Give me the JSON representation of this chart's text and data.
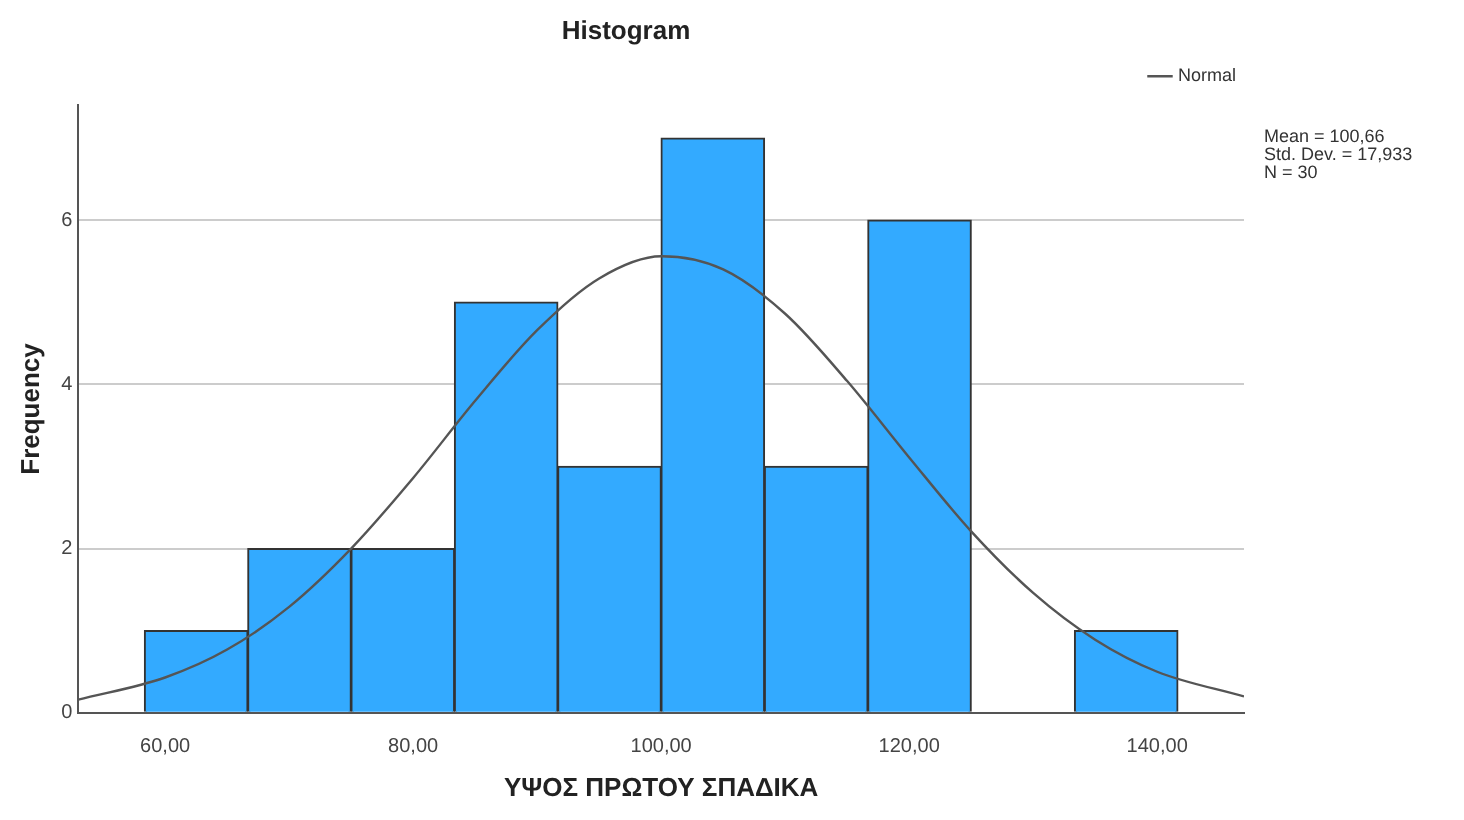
{
  "chart_data": {
    "type": "histogram",
    "title": "Histogram",
    "xlabel": "ΥΨΟΣ ΠΡΩΤΟΥ ΣΠΑΔΙΚΑ",
    "ylabel": "Frequency",
    "bins": [
      58.33,
      66.67,
      75,
      83.33,
      91.67,
      100,
      108.33,
      116.67,
      125,
      133.33,
      141.67
    ],
    "values": [
      1,
      2,
      2,
      5,
      3,
      7,
      3,
      6,
      0,
      1
    ],
    "color": "#33aaff",
    "series": [
      {
        "type": "line",
        "name": "Normal",
        "color": "#555555",
        "x": [
          53,
          60,
          65,
          70,
          75,
          80,
          85,
          90,
          95,
          100,
          105,
          110,
          115,
          120,
          125,
          130,
          135,
          140,
          147
        ],
        "values": [
          0.16,
          0.43,
          0.77,
          1.29,
          2.0,
          2.86,
          3.8,
          4.66,
          5.29,
          5.56,
          5.4,
          4.86,
          4.04,
          3.11,
          2.21,
          1.46,
          0.89,
          0.5,
          0.2
        ]
      }
    ],
    "xlim": [
      53,
      147
    ],
    "xticks": [
      {
        "value": 60,
        "label": "60,00"
      },
      {
        "value": 80,
        "label": "80,00"
      },
      {
        "value": 100,
        "label": "100,00"
      },
      {
        "value": 120,
        "label": "120,00"
      },
      {
        "value": 140,
        "label": "140,00"
      }
    ],
    "ylim": [
      0,
      7.4
    ],
    "yticks": [
      0,
      2,
      4,
      6
    ],
    "grid": "y",
    "legend": "top right",
    "marker": "none",
    "annotations": [
      "Mean = 100,66",
      "Std. Dev. = 17,933",
      "N = 30"
    ]
  }
}
